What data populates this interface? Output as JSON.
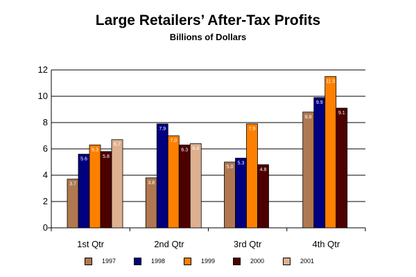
{
  "chart_data": {
    "type": "bar",
    "title": "Large Retailers’ After-Tax Profits",
    "subtitle": "Billions of Dollars",
    "xlabel": "",
    "ylabel": "",
    "categories": [
      "1st Qtr",
      "2nd Qtr",
      "3rd Qtr",
      "4th Qtr"
    ],
    "ylim": [
      0,
      12
    ],
    "yticks": [
      0,
      2,
      4,
      6,
      8,
      10,
      12
    ],
    "grid": true,
    "legend_position": "bottom",
    "series": [
      {
        "name": "1997",
        "color": "#b07850",
        "values": [
          3.7,
          3.8,
          5.0,
          8.8
        ],
        "labels": [
          "3.7",
          "3.8",
          "5.0",
          "8.8"
        ]
      },
      {
        "name": "1998",
        "color": "#000080",
        "values": [
          5.6,
          7.9,
          5.3,
          9.9
        ],
        "labels": [
          "5.6",
          "7.9",
          "5.3",
          "9.9"
        ]
      },
      {
        "name": "1999",
        "color": "#ff8000",
        "values": [
          6.3,
          7.0,
          7.9,
          11.5
        ],
        "labels": [
          "6.3",
          "7.0",
          "7.9",
          "11.5"
        ]
      },
      {
        "name": "2000",
        "color": "#4d0000",
        "values": [
          5.8,
          6.3,
          4.8,
          9.1
        ],
        "labels": [
          "5.8",
          "6.3",
          "4.8",
          "9.1"
        ]
      },
      {
        "name": "2001",
        "color": "#deb090",
        "values": [
          6.7,
          6.4,
          null,
          null
        ],
        "labels": [
          "6.7",
          "6.4",
          "",
          ""
        ]
      }
    ]
  }
}
